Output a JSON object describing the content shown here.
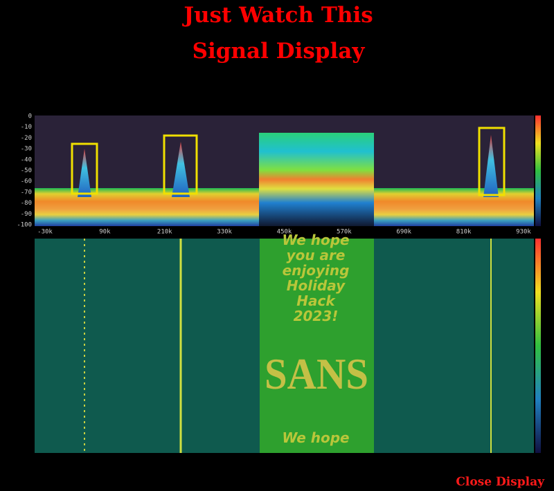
{
  "header": {
    "title_lines": [
      "Just Watch This",
      "Signal Display"
    ]
  },
  "spectrum": {
    "y_ticks": [
      0,
      -10,
      -20,
      -30,
      -40,
      -50,
      -60,
      -70,
      -80,
      -90,
      -100
    ],
    "x_ticks": [
      "-30k",
      "90k",
      "210k",
      "330k",
      "450k",
      "570k",
      "690k",
      "810k",
      "930k"
    ]
  },
  "waterfall": {
    "message_lines": [
      "We hope",
      "you are",
      "enjoying",
      "Holiday",
      "Hack",
      "2023!"
    ],
    "logo": "SANS",
    "repeat_line": "We hope"
  },
  "footer": {
    "close_button": "Close Display"
  }
}
